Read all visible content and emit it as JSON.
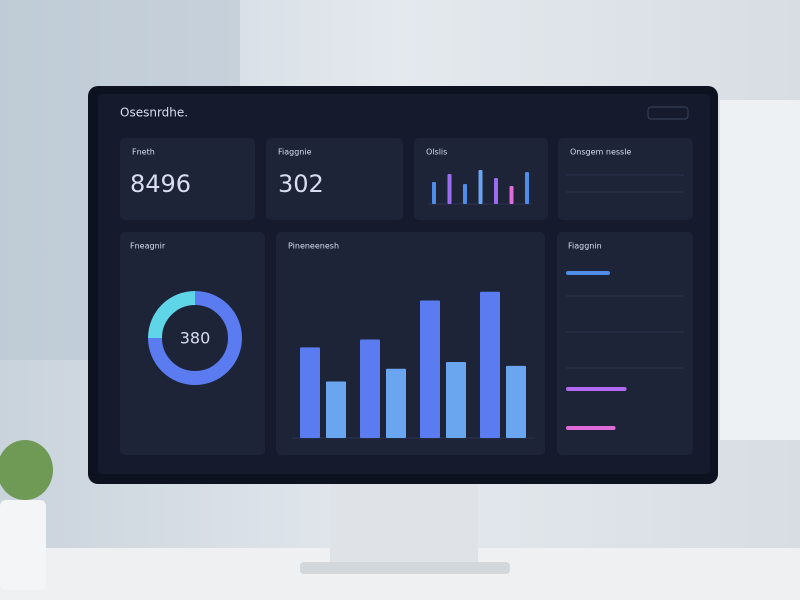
{
  "header": {
    "title": "Osesnrdhe."
  },
  "kpis": [
    {
      "label": "Fneth",
      "value": "8496"
    },
    {
      "label": "Fiaggnie",
      "value": "302"
    }
  ],
  "mini_chart": {
    "type": "bar",
    "title": "Olslis",
    "values": [
      22,
      30,
      20,
      34,
      26,
      18,
      32
    ],
    "colors": [
      "#4f8de8",
      "#9b6cf0",
      "#4f8de8",
      "#6aa6f0",
      "#9b6cf0",
      "#e06ad8",
      "#4f8de8"
    ],
    "ylim": [
      0,
      40
    ]
  },
  "table_card": {
    "title": "Onsgem nessle"
  },
  "donut": {
    "type": "pie",
    "title": "Fneagnir",
    "center_label": "380",
    "values": [
      75,
      25
    ],
    "colors": [
      "#5b7cf0",
      "#5fd6e8"
    ]
  },
  "main_chart": {
    "type": "bar",
    "title": "Pineneenesh",
    "values": [
      93,
      58,
      101,
      71,
      141,
      78,
      150,
      74
    ],
    "colors": [
      "#5b7cf0",
      "#6aa6f0"
    ],
    "ylim": [
      0,
      160
    ]
  },
  "list_card": {
    "title": "Fiaggnin",
    "xlim": [
      0,
      100
    ],
    "progress": [
      {
        "value": 40,
        "color": "#4f8de8"
      },
      {
        "value": 55,
        "color": "#b268f0"
      },
      {
        "value": 45,
        "color": "#e06ad8"
      }
    ]
  }
}
